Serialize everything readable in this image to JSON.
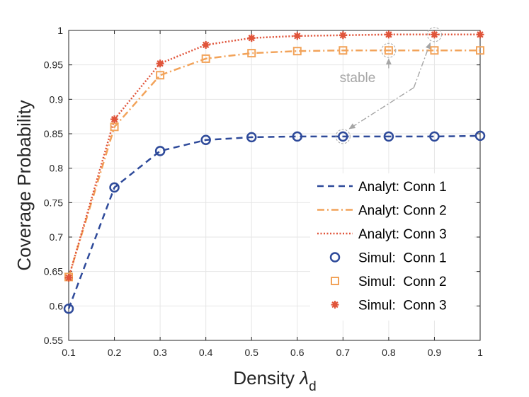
{
  "chart_data": {
    "type": "line",
    "xlabel": "Density",
    "xlabel_symbol": "λ",
    "xlabel_subscript": "d",
    "ylabel": "Coverage Probability",
    "xlim": [
      0.1,
      1
    ],
    "ylim": [
      0.55,
      1
    ],
    "grid": true,
    "x": [
      0.1,
      0.2,
      0.3,
      0.4,
      0.5,
      0.6,
      0.7,
      0.8,
      0.9,
      1.0
    ],
    "x_tick_labels": [
      "0.1",
      "0.2",
      "0.3",
      "0.4",
      "0.5",
      "0.6",
      "0.7",
      "0.8",
      "0.9",
      "1"
    ],
    "y_ticks": [
      0.55,
      0.6,
      0.65,
      0.7,
      0.75,
      0.8,
      0.85,
      0.9,
      0.95,
      1
    ],
    "y_tick_labels": [
      "0.55",
      "0.6",
      "0.65",
      "0.7",
      "0.75",
      "0.8",
      "0.85",
      "0.9",
      "0.95",
      "1"
    ],
    "series": [
      {
        "name": "Analyt: Conn 1",
        "kind": "analytical",
        "style": "dashed",
        "color": "#2E4A9A",
        "values": [
          0.596,
          0.772,
          0.825,
          0.841,
          0.845,
          0.846,
          0.846,
          0.846,
          0.846,
          0.847
        ]
      },
      {
        "name": "Analyt: Conn 2",
        "kind": "analytical",
        "style": "dashdot",
        "color": "#F2A35A",
        "values": [
          0.642,
          0.86,
          0.935,
          0.959,
          0.967,
          0.97,
          0.971,
          0.971,
          0.971,
          0.971
        ]
      },
      {
        "name": "Analyt: Conn 3",
        "kind": "analytical",
        "style": "dotted",
        "color": "#E0543A",
        "values": [
          0.641,
          0.871,
          0.952,
          0.979,
          0.989,
          0.992,
          0.993,
          0.994,
          0.994,
          0.994
        ]
      },
      {
        "name": "Simul:  Conn 1",
        "kind": "simulation",
        "marker": "circle",
        "color": "#2E4A9A",
        "values": [
          0.596,
          0.772,
          0.825,
          0.841,
          0.845,
          0.846,
          0.846,
          0.846,
          0.846,
          0.847
        ]
      },
      {
        "name": "Simul:  Conn 2",
        "kind": "simulation",
        "marker": "square",
        "color": "#F2A35A",
        "values": [
          0.642,
          0.86,
          0.935,
          0.959,
          0.967,
          0.97,
          0.971,
          0.971,
          0.971,
          0.971
        ]
      },
      {
        "name": "Simul:  Conn 3",
        "kind": "simulation",
        "marker": "asterisk",
        "color": "#E0543A",
        "values": [
          0.641,
          0.871,
          0.952,
          0.979,
          0.989,
          0.992,
          0.993,
          0.994,
          0.994,
          0.994
        ]
      }
    ],
    "legend_position": "center-right",
    "annotations": [
      {
        "text": "stable",
        "color": "#A6A6A6",
        "highlight_points": [
          [
            0.7,
            0.846
          ],
          [
            0.8,
            0.971
          ],
          [
            0.9,
            0.994
          ]
        ]
      }
    ]
  }
}
